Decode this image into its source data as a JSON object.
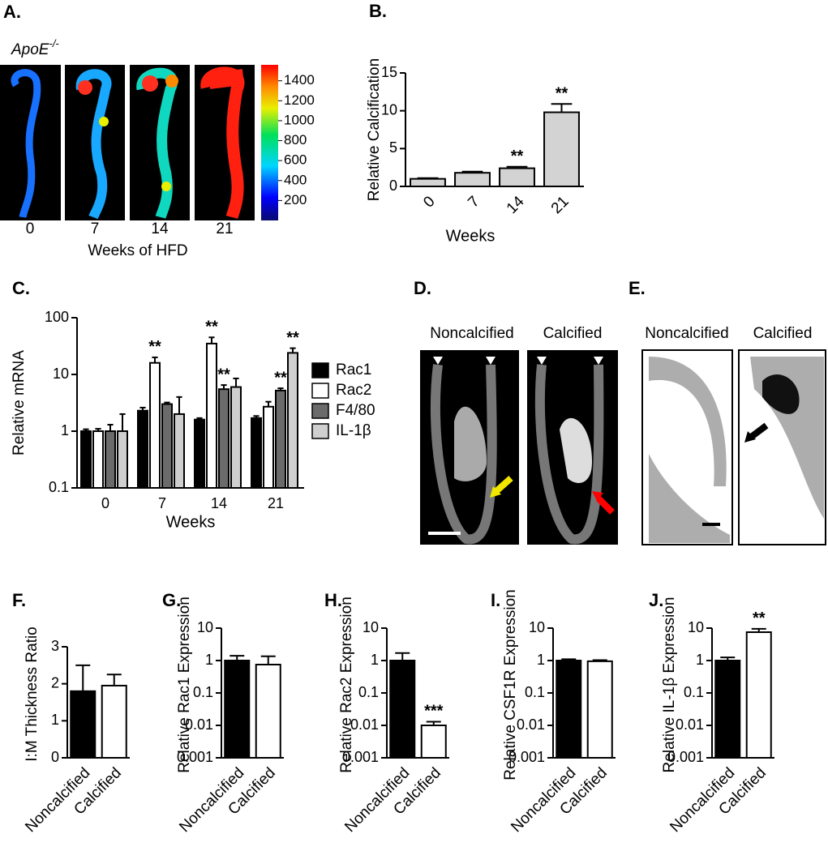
{
  "panels": {
    "A": {
      "label": "A.",
      "genotype": "ApoE",
      "genotype_superscript": "-/-",
      "timepoints": [
        "0",
        "7",
        "14",
        "21"
      ],
      "xlabel": "Weeks of HFD",
      "colorbar_range": [
        0,
        1560
      ],
      "colorbar_ticks": [
        200,
        400,
        600,
        800,
        1000,
        1200,
        1400
      ]
    },
    "D": {
      "label": "D.",
      "images": [
        "Noncalcified",
        "Calcified"
      ]
    },
    "E": {
      "label": "E.",
      "images": [
        "Noncalcified",
        "Calcified"
      ]
    }
  },
  "chart_data": [
    {
      "type": "bar",
      "panel": "B.",
      "ylabel": "Relative Calcification",
      "xlabel": "Weeks",
      "categories": [
        "0",
        "7",
        "14",
        "21"
      ],
      "values": [
        1,
        1.8,
        2.4,
        9.8
      ],
      "errors": [
        0.1,
        0.15,
        0.2,
        1.1
      ],
      "significance": [
        null,
        null,
        "**",
        "**"
      ],
      "color": "#d3d3d3",
      "ylim": [
        0,
        15
      ],
      "yticks": [
        0,
        5,
        10,
        15
      ]
    },
    {
      "type": "grouped-bar",
      "panel": "C.",
      "ylabel": "Relative mRNA",
      "xlabel": "Weeks",
      "log_scale": true,
      "categories": [
        "0",
        "7",
        "14",
        "21"
      ],
      "ylim": [
        0.1,
        100
      ],
      "yticks": [
        0.1,
        1,
        10,
        100
      ],
      "series": [
        {
          "name": "Rac1",
          "color": "#000000",
          "values": [
            1,
            2.3,
            1.6,
            1.7
          ],
          "errors": [
            0.08,
            0.3,
            0.1,
            0.15
          ],
          "significance": [
            null,
            null,
            null,
            null
          ]
        },
        {
          "name": "Rac2",
          "color": "#ffffff",
          "values": [
            1,
            16,
            35,
            2.7
          ],
          "errors": [
            0.1,
            4,
            10,
            0.6
          ],
          "significance": [
            null,
            "**",
            "**",
            null
          ]
        },
        {
          "name": "F4/80",
          "color": "#6b6b6b",
          "values": [
            1,
            3,
            5.5,
            5.2
          ],
          "errors": [
            0.3,
            0.2,
            1,
            0.5
          ],
          "significance": [
            null,
            null,
            "**",
            "**"
          ]
        },
        {
          "name": "IL-1β",
          "color": "#cfcfcf",
          "values": [
            1,
            2,
            6,
            24
          ],
          "errors": [
            1,
            2,
            2.5,
            5
          ],
          "significance": [
            null,
            null,
            null,
            "**"
          ]
        }
      ]
    },
    {
      "type": "bar",
      "panel": "F.",
      "ylabel": "I:M Thickness Ratio",
      "categories": [
        "Noncalcified",
        "Calcified"
      ],
      "values": [
        1.8,
        1.95
      ],
      "errors": [
        0.7,
        0.3
      ],
      "significance": [
        null,
        null
      ],
      "colors": [
        "#000000",
        "#ffffff"
      ],
      "ylim": [
        0,
        3
      ],
      "yticks": [
        0,
        1,
        2,
        3
      ]
    },
    {
      "type": "bar",
      "panel": "G.",
      "ylabel": "Relative Rac1 Expression",
      "log_scale": true,
      "categories": [
        "Noncalcified",
        "Calcified"
      ],
      "values": [
        1,
        0.75
      ],
      "errors": [
        0.4,
        0.6
      ],
      "significance": [
        null,
        null
      ],
      "colors": [
        "#000000",
        "#ffffff"
      ],
      "ylim": [
        0.001,
        10
      ],
      "yticks": [
        0.001,
        0.01,
        0.1,
        1,
        10
      ]
    },
    {
      "type": "bar",
      "panel": "H.",
      "ylabel": "Relative Rac2 Expression",
      "log_scale": true,
      "categories": [
        "Noncalcified",
        "Calcified"
      ],
      "values": [
        1,
        0.01
      ],
      "errors": [
        0.7,
        0.003
      ],
      "significance": [
        null,
        "***"
      ],
      "colors": [
        "#000000",
        "#ffffff"
      ],
      "ylim": [
        0.001,
        10
      ],
      "yticks": [
        0.001,
        0.01,
        0.1,
        1,
        10
      ]
    },
    {
      "type": "bar",
      "panel": "I.",
      "ylabel": "Relative CSF1R Expression",
      "log_scale": true,
      "categories": [
        "Noncalcified",
        "Calcified"
      ],
      "values": [
        1,
        0.95
      ],
      "errors": [
        0.1,
        0.08
      ],
      "significance": [
        null,
        null
      ],
      "colors": [
        "#000000",
        "#ffffff"
      ],
      "ylim": [
        0.001,
        10
      ],
      "yticks": [
        0.001,
        0.01,
        0.1,
        1,
        10
      ]
    },
    {
      "type": "bar",
      "panel": "J.",
      "ylabel": "Relative IL-1β Expression",
      "log_scale": true,
      "categories": [
        "Noncalcified",
        "Calcified"
      ],
      "values": [
        1,
        7.5
      ],
      "errors": [
        0.25,
        2
      ],
      "significance": [
        null,
        "**"
      ],
      "colors": [
        "#000000",
        "#ffffff"
      ],
      "ylim": [
        0.001,
        10
      ],
      "yticks": [
        0.001,
        0.01,
        0.1,
        1,
        10
      ]
    }
  ]
}
